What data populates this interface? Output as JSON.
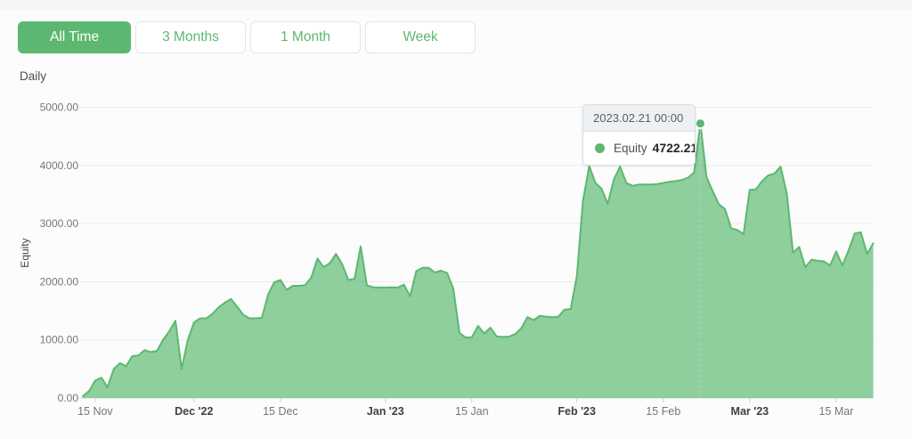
{
  "toolbar": {
    "buttons": [
      {
        "label": "All Time",
        "active": true
      },
      {
        "label": "3 Months",
        "active": false
      },
      {
        "label": "1 Month",
        "active": false
      },
      {
        "label": "Week",
        "active": false
      }
    ]
  },
  "frequency_label": "Daily",
  "tooltip": {
    "date": "2023.02.21 00:00",
    "series": "Equity",
    "value": "4722.21"
  },
  "colors": {
    "accent": "#5cb870",
    "area_fill": "rgba(92,184,112,0.68)",
    "grid": "#ececec",
    "axis": "#dcdddf",
    "dashed_guide": "#c8ccd0"
  },
  "chart_data": {
    "type": "area",
    "title": "",
    "xlabel": "",
    "ylabel": "Equity",
    "ylim": [
      0,
      5000
    ],
    "grid": "horizontal-only",
    "legend": "none (single series, tooltip shown)",
    "y_ticks": [
      "5000.00",
      "4000.00",
      "3000.00",
      "2000.00",
      "1000.00",
      "0.00"
    ],
    "x_start_date": "2022-11-13",
    "x_frequency": "daily",
    "x_ticks": [
      {
        "label": "15 Nov",
        "day": 2,
        "bold": false
      },
      {
        "label": "Dec '22",
        "day": 18,
        "bold": true
      },
      {
        "label": "15 Dec",
        "day": 32,
        "bold": false
      },
      {
        "label": "Jan '23",
        "day": 49,
        "bold": true
      },
      {
        "label": "15 Jan",
        "day": 63,
        "bold": false
      },
      {
        "label": "Feb '23",
        "day": 80,
        "bold": true
      },
      {
        "label": "15 Feb",
        "day": 94,
        "bold": false
      },
      {
        "label": "Mar '23",
        "day": 108,
        "bold": true
      },
      {
        "label": "15 Mar",
        "day": 122,
        "bold": false
      }
    ],
    "series": [
      {
        "name": "Equity",
        "color": "#5cb870",
        "values": [
          30,
          120,
          300,
          350,
          185,
          500,
          600,
          545,
          720,
          730,
          825,
          790,
          810,
          1000,
          1150,
          1330,
          500,
          1000,
          1300,
          1370,
          1370,
          1450,
          1560,
          1640,
          1705,
          1570,
          1430,
          1370,
          1370,
          1380,
          1780,
          1990,
          2030,
          1860,
          1930,
          1930,
          1940,
          2070,
          2400,
          2250,
          2320,
          2480,
          2300,
          2030,
          2050,
          2610,
          1940,
          1905,
          1900,
          1900,
          1905,
          1900,
          1950,
          1750,
          2180,
          2240,
          2240,
          2160,
          2190,
          2150,
          1880,
          1120,
          1040,
          1045,
          1240,
          1110,
          1210,
          1060,
          1050,
          1055,
          1100,
          1200,
          1390,
          1340,
          1415,
          1400,
          1390,
          1400,
          1520,
          1530,
          2100,
          3400,
          3990,
          3700,
          3600,
          3340,
          3760,
          3980,
          3700,
          3650,
          3670,
          3670,
          3670,
          3680,
          3700,
          3720,
          3730,
          3750,
          3790,
          3880,
          4722.21,
          3800,
          3560,
          3330,
          3250,
          2920,
          2890,
          2820,
          3580,
          3590,
          3730,
          3830,
          3860,
          3980,
          3520,
          2500,
          2600,
          2250,
          2380,
          2360,
          2350,
          2280,
          2520,
          2280,
          2540,
          2830,
          2850,
          2480,
          2660
        ]
      }
    ],
    "highlight": {
      "day": 100,
      "value": 4722.21,
      "label": "2023.02.21 00:00"
    }
  }
}
